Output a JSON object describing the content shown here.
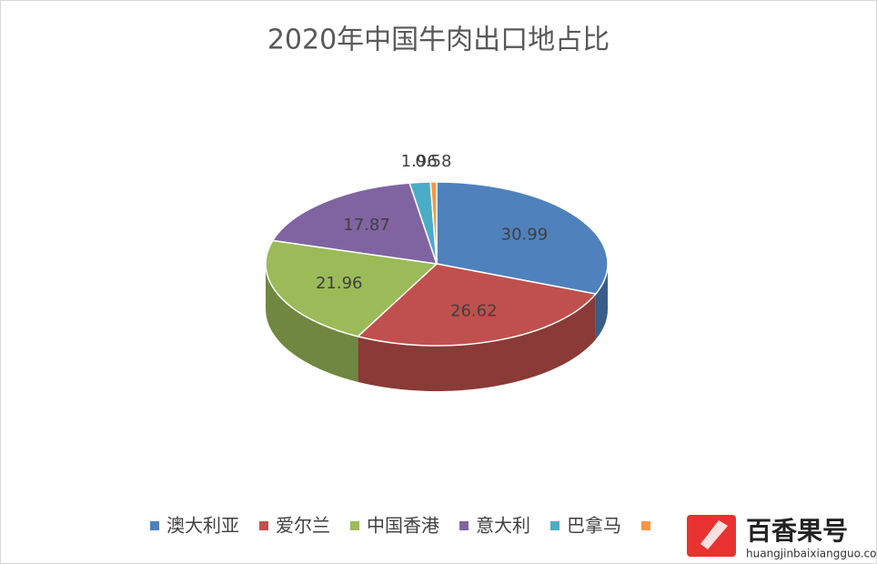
{
  "chart_data": {
    "type": "pie3d",
    "title": "2020年中国牛肉出口地占比",
    "categories": [
      "澳大利亚",
      "爱尔兰",
      "中国香港",
      "意大利",
      "巴拿马",
      null
    ],
    "values": [
      30.99,
      26.62,
      21.96,
      17.87,
      1.96,
      0.58
    ],
    "colors": [
      "#4f81bd",
      "#c0504d",
      "#9bbb59",
      "#8064a2",
      "#4bacc6",
      "#f79646"
    ],
    "legend": "bottom"
  },
  "watermark": {
    "title": "百香果号",
    "url": "huangjinbaixiangguo.com"
  }
}
